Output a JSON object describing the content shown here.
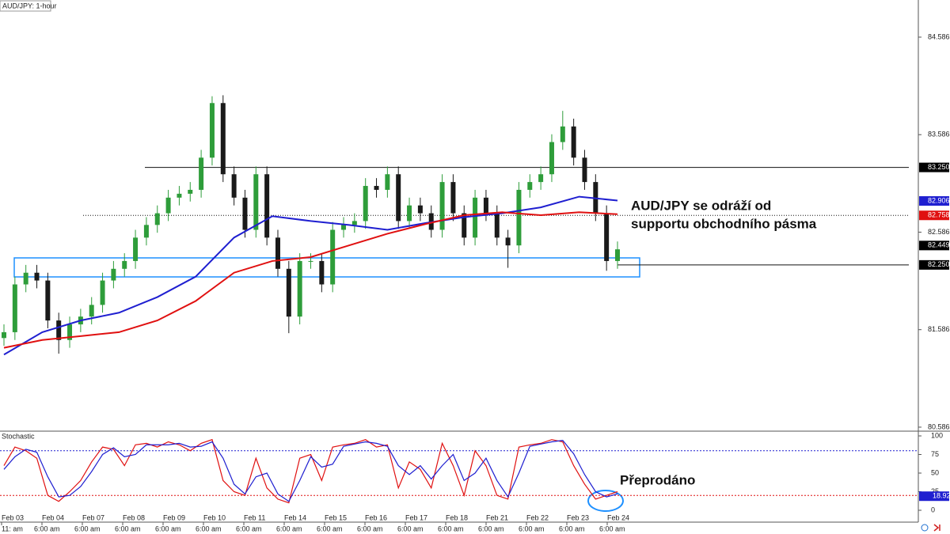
{
  "chart_data": {
    "type": "candlestick",
    "title": "AUD/JPY: 1-hour",
    "up_color": "#2e9d3a",
    "down_color": "#1a1a1a",
    "candles": [
      [
        81.5,
        81.64,
        81.42,
        81.56
      ],
      [
        81.56,
        82.13,
        81.48,
        82.05
      ],
      [
        82.05,
        82.25,
        81.97,
        82.17
      ],
      [
        82.17,
        82.25,
        82.01,
        82.09
      ],
      [
        82.09,
        82.17,
        81.6,
        81.68
      ],
      [
        81.68,
        81.76,
        81.34,
        81.48
      ],
      [
        81.48,
        81.72,
        81.4,
        81.64
      ],
      [
        81.64,
        81.8,
        81.56,
        81.72
      ],
      [
        81.72,
        81.92,
        81.64,
        81.84
      ],
      [
        81.84,
        82.17,
        81.76,
        82.09
      ],
      [
        82.09,
        82.29,
        82.01,
        82.21
      ],
      [
        82.21,
        82.37,
        82.13,
        82.29
      ],
      [
        82.29,
        82.61,
        82.21,
        82.53
      ],
      [
        82.53,
        82.74,
        82.45,
        82.66
      ],
      [
        82.66,
        82.86,
        82.58,
        82.78
      ],
      [
        82.78,
        83.02,
        82.7,
        82.94
      ],
      [
        82.94,
        83.06,
        82.86,
        82.98
      ],
      [
        82.98,
        83.1,
        82.9,
        83.02
      ],
      [
        83.02,
        83.43,
        82.94,
        83.35
      ],
      [
        83.35,
        83.98,
        83.27,
        83.91
      ],
      [
        83.91,
        83.99,
        83.1,
        83.18
      ],
      [
        83.18,
        83.26,
        82.86,
        82.94
      ],
      [
        82.94,
        83.02,
        82.53,
        82.61
      ],
      [
        82.61,
        83.26,
        82.53,
        83.18
      ],
      [
        83.18,
        83.26,
        82.45,
        82.53
      ],
      [
        82.53,
        82.61,
        82.13,
        82.21
      ],
      [
        82.21,
        82.29,
        81.55,
        81.72
      ],
      [
        81.72,
        82.37,
        81.64,
        82.29
      ],
      [
        82.29,
        82.37,
        82.21,
        82.29
      ],
      [
        82.29,
        82.37,
        81.97,
        82.05
      ],
      [
        82.05,
        82.69,
        81.97,
        82.61
      ],
      [
        82.61,
        82.74,
        82.53,
        82.66
      ],
      [
        82.66,
        82.78,
        82.58,
        82.7
      ],
      [
        82.7,
        83.14,
        82.62,
        83.06
      ],
      [
        83.06,
        83.14,
        82.94,
        83.02
      ],
      [
        83.02,
        83.26,
        82.94,
        83.18
      ],
      [
        83.18,
        83.26,
        82.62,
        82.7
      ],
      [
        82.7,
        82.94,
        82.62,
        82.86
      ],
      [
        82.86,
        82.94,
        82.7,
        82.78
      ],
      [
        82.78,
        82.86,
        82.53,
        82.61
      ],
      [
        82.61,
        83.18,
        82.53,
        83.1
      ],
      [
        83.1,
        83.18,
        82.7,
        82.78
      ],
      [
        82.78,
        82.86,
        82.45,
        82.53
      ],
      [
        82.53,
        83.02,
        82.45,
        82.94
      ],
      [
        82.94,
        83.02,
        82.7,
        82.78
      ],
      [
        82.78,
        82.86,
        82.45,
        82.53
      ],
      [
        82.53,
        82.61,
        82.22,
        82.45
      ],
      [
        82.45,
        83.1,
        82.37,
        83.02
      ],
      [
        83.02,
        83.18,
        82.94,
        83.1
      ],
      [
        83.1,
        83.26,
        83.02,
        83.18
      ],
      [
        83.18,
        83.59,
        83.1,
        83.51
      ],
      [
        83.51,
        83.83,
        83.43,
        83.67
      ],
      [
        83.67,
        83.75,
        83.27,
        83.35
      ],
      [
        83.35,
        83.43,
        83.02,
        83.1
      ],
      [
        83.1,
        83.18,
        82.7,
        82.78
      ],
      [
        82.78,
        82.86,
        82.19,
        82.29
      ],
      [
        82.29,
        82.49,
        82.21,
        82.41
      ]
    ],
    "ylim": [
      80.545,
      84.967
    ],
    "yticks": [
      80.586,
      81.586,
      82.586,
      83.586,
      84.586
    ],
    "moving_averages": [
      {
        "color": "#1f1fd0",
        "values": [
          81.33,
          81.56,
          81.68,
          81.76,
          81.92,
          82.13,
          82.53,
          82.75,
          82.7,
          82.66,
          82.61,
          82.68,
          82.74,
          82.78,
          82.84,
          82.95,
          82.91
        ]
      },
      {
        "color": "#e01010",
        "values": [
          81.4,
          81.48,
          81.52,
          81.56,
          81.68,
          81.88,
          82.17,
          82.29,
          82.33,
          82.45,
          82.57,
          82.67,
          82.76,
          82.79,
          82.76,
          82.79,
          82.77
        ]
      }
    ],
    "price_labels": [
      {
        "value": 83.25,
        "label": "83.250",
        "bg": "#000000",
        "line": "solid"
      },
      {
        "value": 82.906,
        "bg": "#1f1fd0"
      },
      {
        "value": 82.758,
        "bg": "#e01010",
        "line": "dotted"
      },
      {
        "value": 82.449,
        "bg": "#000000"
      },
      {
        "value": 82.25,
        "label": "82.250",
        "bg": "#000000",
        "line": "solid"
      }
    ],
    "zone": [
      82.127,
      82.322
    ],
    "zone_color": "#1e90ff",
    "annotation": [
      "AUD/JPY se odráží od",
      "supportu obchodního pásma"
    ],
    "oversold_note": "Přeprodáno",
    "categories": [
      "Feb 03",
      "Feb 04",
      "Feb 07",
      "Feb 08",
      "Feb 09",
      "Feb 10",
      "Feb 11",
      "Feb 14",
      "Feb 15",
      "Feb 16",
      "Feb 17",
      "Feb 18",
      "Feb 21",
      "Feb 22",
      "Feb 23",
      "Feb 24"
    ],
    "time_labels": [
      "11: am",
      "6:00 am",
      "6:00 am",
      "6:00 am",
      "6:00 am",
      "6:00 am",
      "6:00 am",
      "6:00 am",
      "6:00 am",
      "6:00 am",
      "6:00 am",
      "6:00 am",
      "6:00 am",
      "6:00 am",
      "6:00 am",
      "6:00 am"
    ],
    "stochastic": {
      "title": "Stochastic",
      "ylim": [
        0,
        100
      ],
      "yticks": [
        0,
        25,
        50,
        75,
        100
      ],
      "levels": [
        {
          "value": 80,
          "color": "#1f1fd0"
        },
        {
          "value": 20,
          "color": "#e01010"
        }
      ],
      "series": [
        {
          "color": "#e01010",
          "values": [
            60,
            85,
            80,
            70,
            20,
            12,
            25,
            40,
            65,
            85,
            82,
            60,
            88,
            90,
            85,
            92,
            88,
            80,
            90,
            95,
            40,
            25,
            20,
            70,
            30,
            15,
            10,
            70,
            75,
            40,
            85,
            88,
            90,
            95,
            85,
            88,
            30,
            65,
            55,
            30,
            90,
            60,
            20,
            80,
            60,
            20,
            15,
            85,
            88,
            90,
            95,
            92,
            60,
            35,
            15,
            20,
            25
          ]
        },
        {
          "color": "#1f1fd0",
          "values": [
            55,
            72,
            82,
            78,
            45,
            18,
            20,
            32,
            52,
            75,
            84,
            72,
            75,
            88,
            88,
            88,
            90,
            85,
            86,
            92,
            70,
            35,
            22,
            45,
            50,
            22,
            12,
            40,
            72,
            58,
            62,
            86,
            89,
            92,
            90,
            86,
            60,
            48,
            60,
            42,
            60,
            75,
            40,
            50,
            70,
            40,
            18,
            50,
            86,
            89,
            92,
            94,
            76,
            48,
            25,
            18,
            22
          ]
        }
      ],
      "marker": {
        "value": 18.92,
        "bg": "#1f1fd0"
      }
    }
  }
}
